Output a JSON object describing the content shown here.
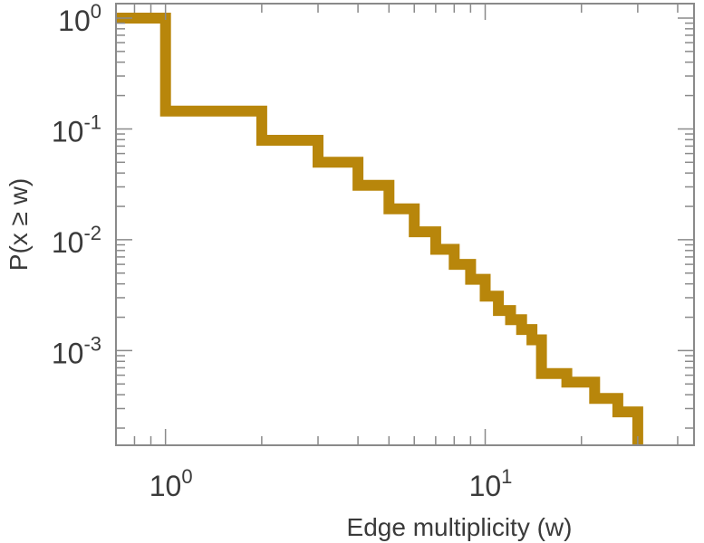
{
  "chart_data": {
    "type": "line",
    "title": "",
    "xlabel": "Edge multiplicity (w)",
    "ylabel": "P(x ≥ w)",
    "xscale": "log",
    "yscale": "log",
    "xlim": [
      0.7,
      45
    ],
    "ylim": [
      0.00014,
      1.35
    ],
    "grid": false,
    "legend": "none",
    "step": "post",
    "line_color": "#B8860B",
    "x_ticks": [
      {
        "value": 1,
        "base": "10",
        "exp": "0"
      },
      {
        "value": 10,
        "base": "10",
        "exp": "1"
      }
    ],
    "y_ticks": [
      {
        "value": 1,
        "base": "10",
        "exp": "0"
      },
      {
        "value": 0.1,
        "base": "10",
        "exp": "-1"
      },
      {
        "value": 0.01,
        "base": "10",
        "exp": "-2"
      },
      {
        "value": 0.001,
        "base": "10",
        "exp": "-3"
      }
    ],
    "series": [
      {
        "x": [
          0.7,
          1,
          2,
          3,
          4,
          5,
          6,
          7,
          8,
          9,
          10,
          11,
          12,
          13,
          14,
          15,
          18,
          22,
          26,
          30,
          30
        ],
        "y": [
          1,
          0.145,
          0.079,
          0.05,
          0.031,
          0.019,
          0.0118,
          0.0082,
          0.006,
          0.0044,
          0.0031,
          0.0023,
          0.0019,
          0.00155,
          0.00125,
          0.00062,
          0.00052,
          0.00037,
          0.00028,
          0.00018,
          0.00014
        ]
      }
    ]
  }
}
